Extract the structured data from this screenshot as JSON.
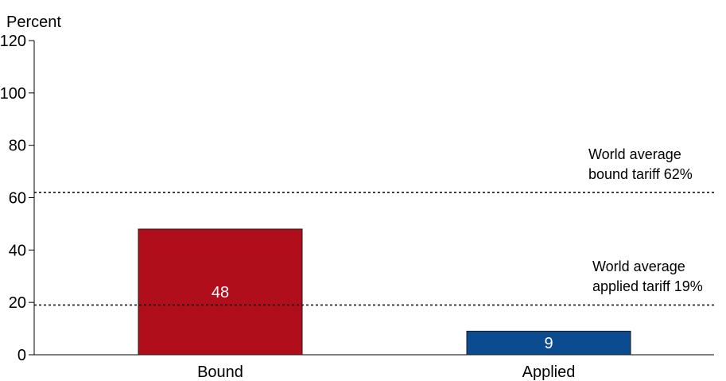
{
  "chart_data": {
    "type": "bar",
    "ylabel": "Percent",
    "xlabel": "",
    "title": "",
    "ylim": [
      0,
      120
    ],
    "yticks": [
      0,
      20,
      40,
      60,
      80,
      100,
      120
    ],
    "grid": false,
    "categories": [
      "Bound",
      "Applied"
    ],
    "values": [
      48,
      9
    ],
    "data_labels": [
      "48",
      "9"
    ],
    "bar_colors": [
      "#b10e1c",
      "#0a4c8f"
    ],
    "reference_lines": [
      {
        "value": 62,
        "label_lines": [
          "World average",
          "bound tariff 62%"
        ],
        "style": "dotted"
      },
      {
        "value": 19,
        "label_lines": [
          "World average",
          "applied tariff 19%"
        ],
        "style": "dotted"
      }
    ]
  }
}
